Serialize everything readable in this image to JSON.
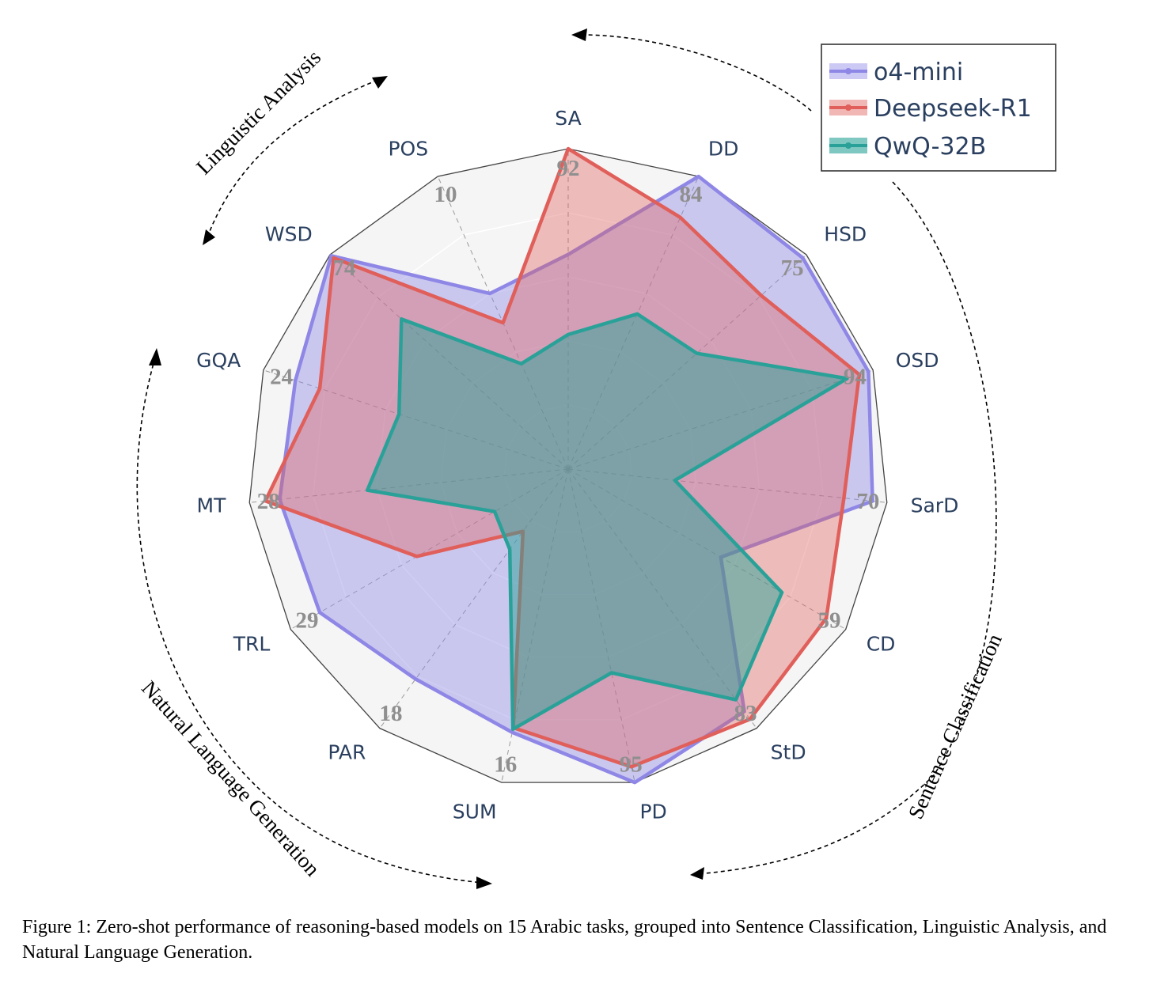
{
  "chart_data": {
    "type": "radar",
    "categories": [
      "SA",
      "DD",
      "HSD",
      "OSD",
      "SarD",
      "CD",
      "StD",
      "PD",
      "SUM",
      "PAR",
      "TRL",
      "MT",
      "GQA",
      "WSD",
      "POS"
    ],
    "axis_max_labels": [
      "92",
      "84",
      "75",
      "94",
      "70",
      "59",
      "83",
      "95",
      "16",
      "18",
      "29",
      "28",
      "24",
      "74",
      "10"
    ],
    "series": [
      {
        "name": "o4-mini",
        "color": "#8f87e6",
        "values": [
          0.67,
          1.0,
          0.985,
          0.985,
          0.955,
          0.55,
          0.935,
          1.0,
          0.84,
          0.81,
          0.895,
          0.905,
          0.895,
          0.995,
          0.6
        ]
      },
      {
        "name": "Deepseek-R1",
        "color": "#e05f5a",
        "values": [
          1.0,
          0.86,
          0.81,
          0.955,
          0.865,
          0.93,
          0.965,
          0.95,
          0.825,
          0.24,
          0.545,
          0.95,
          0.815,
          0.985,
          0.5
        ]
      },
      {
        "name": "QwQ-32B",
        "color": "#2aa198",
        "values": [
          0.42,
          0.53,
          0.54,
          0.915,
          0.335,
          0.77,
          0.89,
          0.65,
          0.83,
          0.31,
          0.265,
          0.63,
          0.555,
          0.7,
          0.36
        ]
      }
    ],
    "group_labels": [
      "Linguistic Analysis",
      "Sentence Classification",
      "Natural Language Generation"
    ],
    "legend_position": "top-right"
  },
  "caption": "Figure 1: Zero-shot performance of reasoning-based models on 15 Arabic tasks, grouped into Sentence Classification, Linguistic Analysis, and Natural Language Generation."
}
